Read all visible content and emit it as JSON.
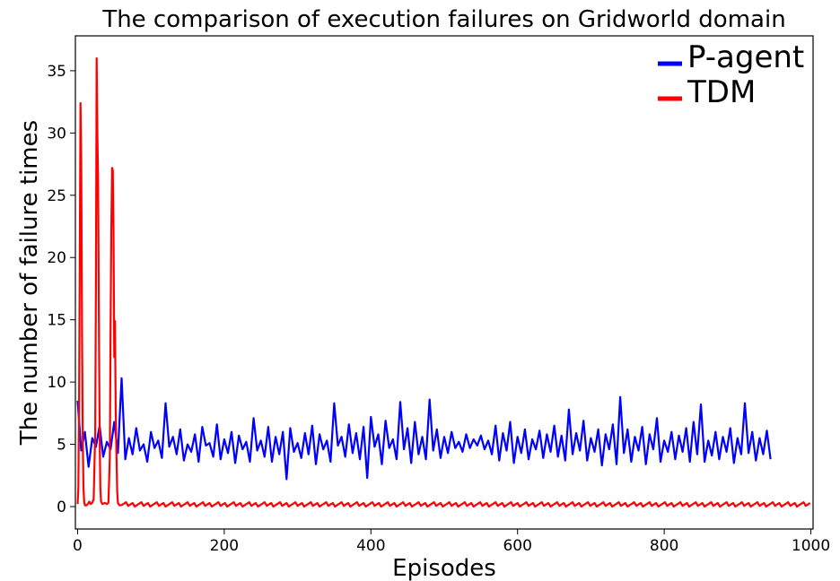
{
  "chart_data": {
    "type": "line",
    "title": "The comparison of execution failures on Gridworld domain",
    "xlabel": "Episodes",
    "ylabel": "The number of failure times",
    "xlim": [
      -3,
      1003
    ],
    "ylim": [
      -1.8,
      37.8
    ],
    "xticks": [
      0,
      200,
      400,
      600,
      800,
      1000
    ],
    "xtick_labels": [
      "0",
      "200",
      "400",
      "600",
      "800",
      "1000"
    ],
    "yticks": [
      0,
      5,
      10,
      15,
      20,
      25,
      30,
      35
    ],
    "ytick_labels": [
      "0",
      "5",
      "10",
      "15",
      "20",
      "25",
      "30",
      "35"
    ],
    "grid": false,
    "legend_position": "top-right",
    "series": [
      {
        "name": "P-agent",
        "color": "#0000ff",
        "x_start": 0,
        "x_step": 5,
        "y": [
          8.5,
          4.5,
          6.0,
          3.2,
          5.5,
          4.8,
          6.5,
          4.0,
          5.2,
          4.6,
          6.8,
          4.3,
          10.3,
          3.8,
          5.5,
          4.2,
          6.3,
          4.5,
          5.0,
          3.6,
          6.0,
          4.7,
          5.3,
          3.9,
          8.3,
          4.8,
          5.6,
          4.2,
          6.2,
          3.7,
          5.0,
          4.4,
          5.8,
          3.6,
          6.4,
          4.9,
          5.1,
          4.0,
          6.6,
          3.8,
          5.4,
          4.3,
          6.0,
          3.5,
          5.7,
          4.6,
          5.2,
          3.6,
          7.1,
          4.5,
          5.3,
          4.0,
          6.4,
          3.6,
          5.6,
          4.2,
          6.0,
          2.2,
          6.3,
          4.4,
          5.1,
          3.9,
          5.9,
          4.2,
          6.5,
          3.4,
          5.8,
          4.6,
          5.3,
          3.6,
          8.3,
          4.9,
          5.6,
          4.0,
          6.6,
          4.3,
          5.9,
          3.8,
          6.4,
          2.3,
          7.2,
          4.8,
          5.8,
          3.4,
          6.9,
          4.7,
          5.4,
          3.8,
          8.4,
          4.6,
          6.3,
          3.5,
          6.8,
          4.2,
          5.6,
          3.8,
          8.6,
          4.5,
          6.2,
          3.9,
          5.6,
          4.3,
          6.0,
          4.7,
          5.2,
          4.4,
          5.8,
          4.7,
          5.4,
          4.9,
          5.7,
          4.6,
          5.3,
          4.2,
          6.5,
          3.7,
          5.9,
          4.5,
          6.8,
          3.5,
          5.6,
          4.3,
          6.2,
          3.8,
          5.4,
          4.6,
          6.1,
          3.9,
          5.8,
          4.4,
          6.5,
          4.0,
          5.7,
          3.7,
          7.8,
          4.2,
          5.9,
          4.5,
          6.9,
          3.7,
          5.5,
          4.4,
          6.2,
          3.3,
          5.8,
          4.6,
          6.6,
          3.4,
          8.8,
          4.3,
          6.2,
          3.6,
          5.6,
          4.5,
          6.4,
          3.4,
          5.8,
          4.6,
          7.1,
          3.6,
          5.3,
          4.4,
          6.0,
          3.8,
          5.7,
          4.4,
          6.3,
          3.6,
          6.8,
          4.2,
          8.2,
          3.6,
          5.3,
          4.1,
          6.0,
          3.8,
          5.6,
          4.4,
          6.3,
          3.5,
          5.5,
          4.2,
          8.3,
          4.3,
          6.0,
          3.7,
          5.5,
          4.2,
          6.1,
          3.8
        ]
      },
      {
        "name": "TDM",
        "color": "#ff0000",
        "points": [
          [
            0,
            0.2
          ],
          [
            1,
            1.5
          ],
          [
            2,
            8
          ],
          [
            3,
            20
          ],
          [
            4,
            32.4
          ],
          [
            5,
            28
          ],
          [
            6,
            14
          ],
          [
            7,
            5.5
          ],
          [
            8,
            1.5
          ],
          [
            9,
            0.4
          ],
          [
            10,
            0.1
          ],
          [
            12,
            0.1
          ],
          [
            14,
            0.2
          ],
          [
            16,
            0.4
          ],
          [
            18,
            0.2
          ],
          [
            20,
            0.3
          ],
          [
            22,
            0.6
          ],
          [
            24,
            6
          ],
          [
            25,
            18
          ],
          [
            26,
            36
          ],
          [
            27,
            30
          ],
          [
            28,
            26.3
          ],
          [
            29,
            16
          ],
          [
            30,
            6
          ],
          [
            31,
            1.5
          ],
          [
            32,
            0.4
          ],
          [
            34,
            0.2
          ],
          [
            37,
            0.3
          ],
          [
            40,
            0.2
          ],
          [
            42,
            0.3
          ],
          [
            44,
            4
          ],
          [
            45,
            14
          ],
          [
            46,
            22
          ],
          [
            47,
            27.2
          ],
          [
            48,
            27
          ],
          [
            49,
            22
          ],
          [
            50,
            12
          ],
          [
            51,
            14.9
          ],
          [
            52,
            8
          ],
          [
            53,
            4
          ],
          [
            54,
            1.2
          ],
          [
            55,
            0.3
          ],
          [
            57,
            0.1
          ]
        ],
        "baseline_start": 57,
        "baseline_end": 1000,
        "baseline_step": 3,
        "baseline_low": 0.0,
        "baseline_high": 0.35
      }
    ]
  }
}
